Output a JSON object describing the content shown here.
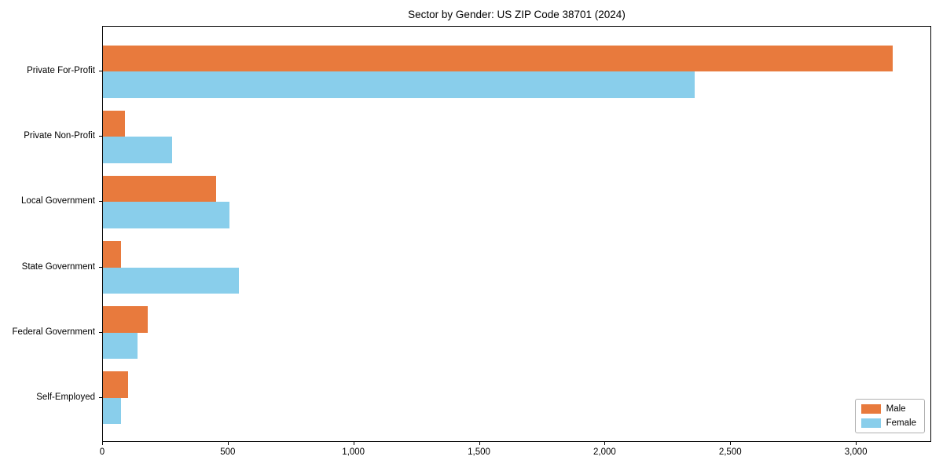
{
  "chart_data": {
    "type": "bar",
    "orientation": "horizontal",
    "title": "Sector by Gender: US ZIP Code 38701 (2024)",
    "xlabel": "",
    "ylabel": "",
    "categories": [
      "Private For-Profit",
      "Private Non-Profit",
      "Local Government",
      "State Government",
      "Federal Government",
      "Self-Employed"
    ],
    "series": [
      {
        "name": "Male",
        "color": "#E87A3D",
        "values": [
          3145,
          88,
          450,
          72,
          178,
          100
        ]
      },
      {
        "name": "Female",
        "color": "#89CEEB",
        "values": [
          2355,
          275,
          505,
          540,
          138,
          72
        ]
      }
    ],
    "xlim": [
      0,
      3300
    ],
    "x_ticks": [
      0,
      500,
      1000,
      1500,
      2000,
      2500,
      3000
    ],
    "x_tick_labels": [
      "0",
      "500",
      "1,000",
      "1,500",
      "2,000",
      "2,500",
      "3,000"
    ],
    "grid": false,
    "legend_position": "lower right",
    "legend_labels": [
      "Male",
      "Female"
    ]
  },
  "colors": {
    "male": "#E87A3D",
    "female": "#89CEEB",
    "axis": "#000000",
    "background": "#ffffff",
    "legend_border": "#b0b0b0"
  }
}
